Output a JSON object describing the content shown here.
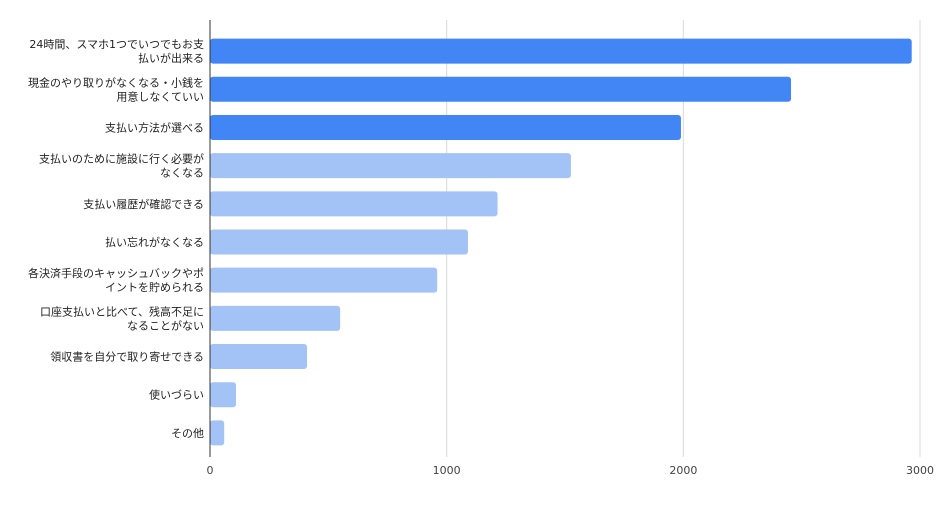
{
  "chart_data": {
    "type": "bar",
    "orientation": "horizontal",
    "title": "",
    "xlabel": "",
    "ylabel": "",
    "categories": [
      [
        "24時間、スマホ1つでいつでもお支",
        "払いが出来る"
      ],
      [
        "現金のやり取りがなくなる・小銭を",
        "用意しなくていい"
      ],
      [
        "支払い方法が選べる"
      ],
      [
        "支払いのために施設に行く必要が",
        "なくなる"
      ],
      [
        "支払い履歴が確認できる"
      ],
      [
        "払い忘れがなくなる"
      ],
      [
        "各決済手段のキャッシュバックやポ",
        "イントを貯められる"
      ],
      [
        "口座支払いと比べて、残高不足に",
        "なることがない"
      ],
      [
        "領収書を自分で取り寄せできる"
      ],
      [
        "使いづらい"
      ],
      [
        "その他"
      ]
    ],
    "values": [
      2965,
      2455,
      1990,
      1525,
      1215,
      1090,
      960,
      550,
      410,
      110,
      60
    ],
    "highlight_count": 3,
    "xlim": [
      0,
      3000
    ],
    "xticks": [
      0,
      1000,
      2000,
      3000
    ],
    "grid": "vertical",
    "colors": {
      "highlight": "#4285f4",
      "normal": "#a3c2f5",
      "grid": "#d9d9d9",
      "axis": "#333333"
    }
  }
}
